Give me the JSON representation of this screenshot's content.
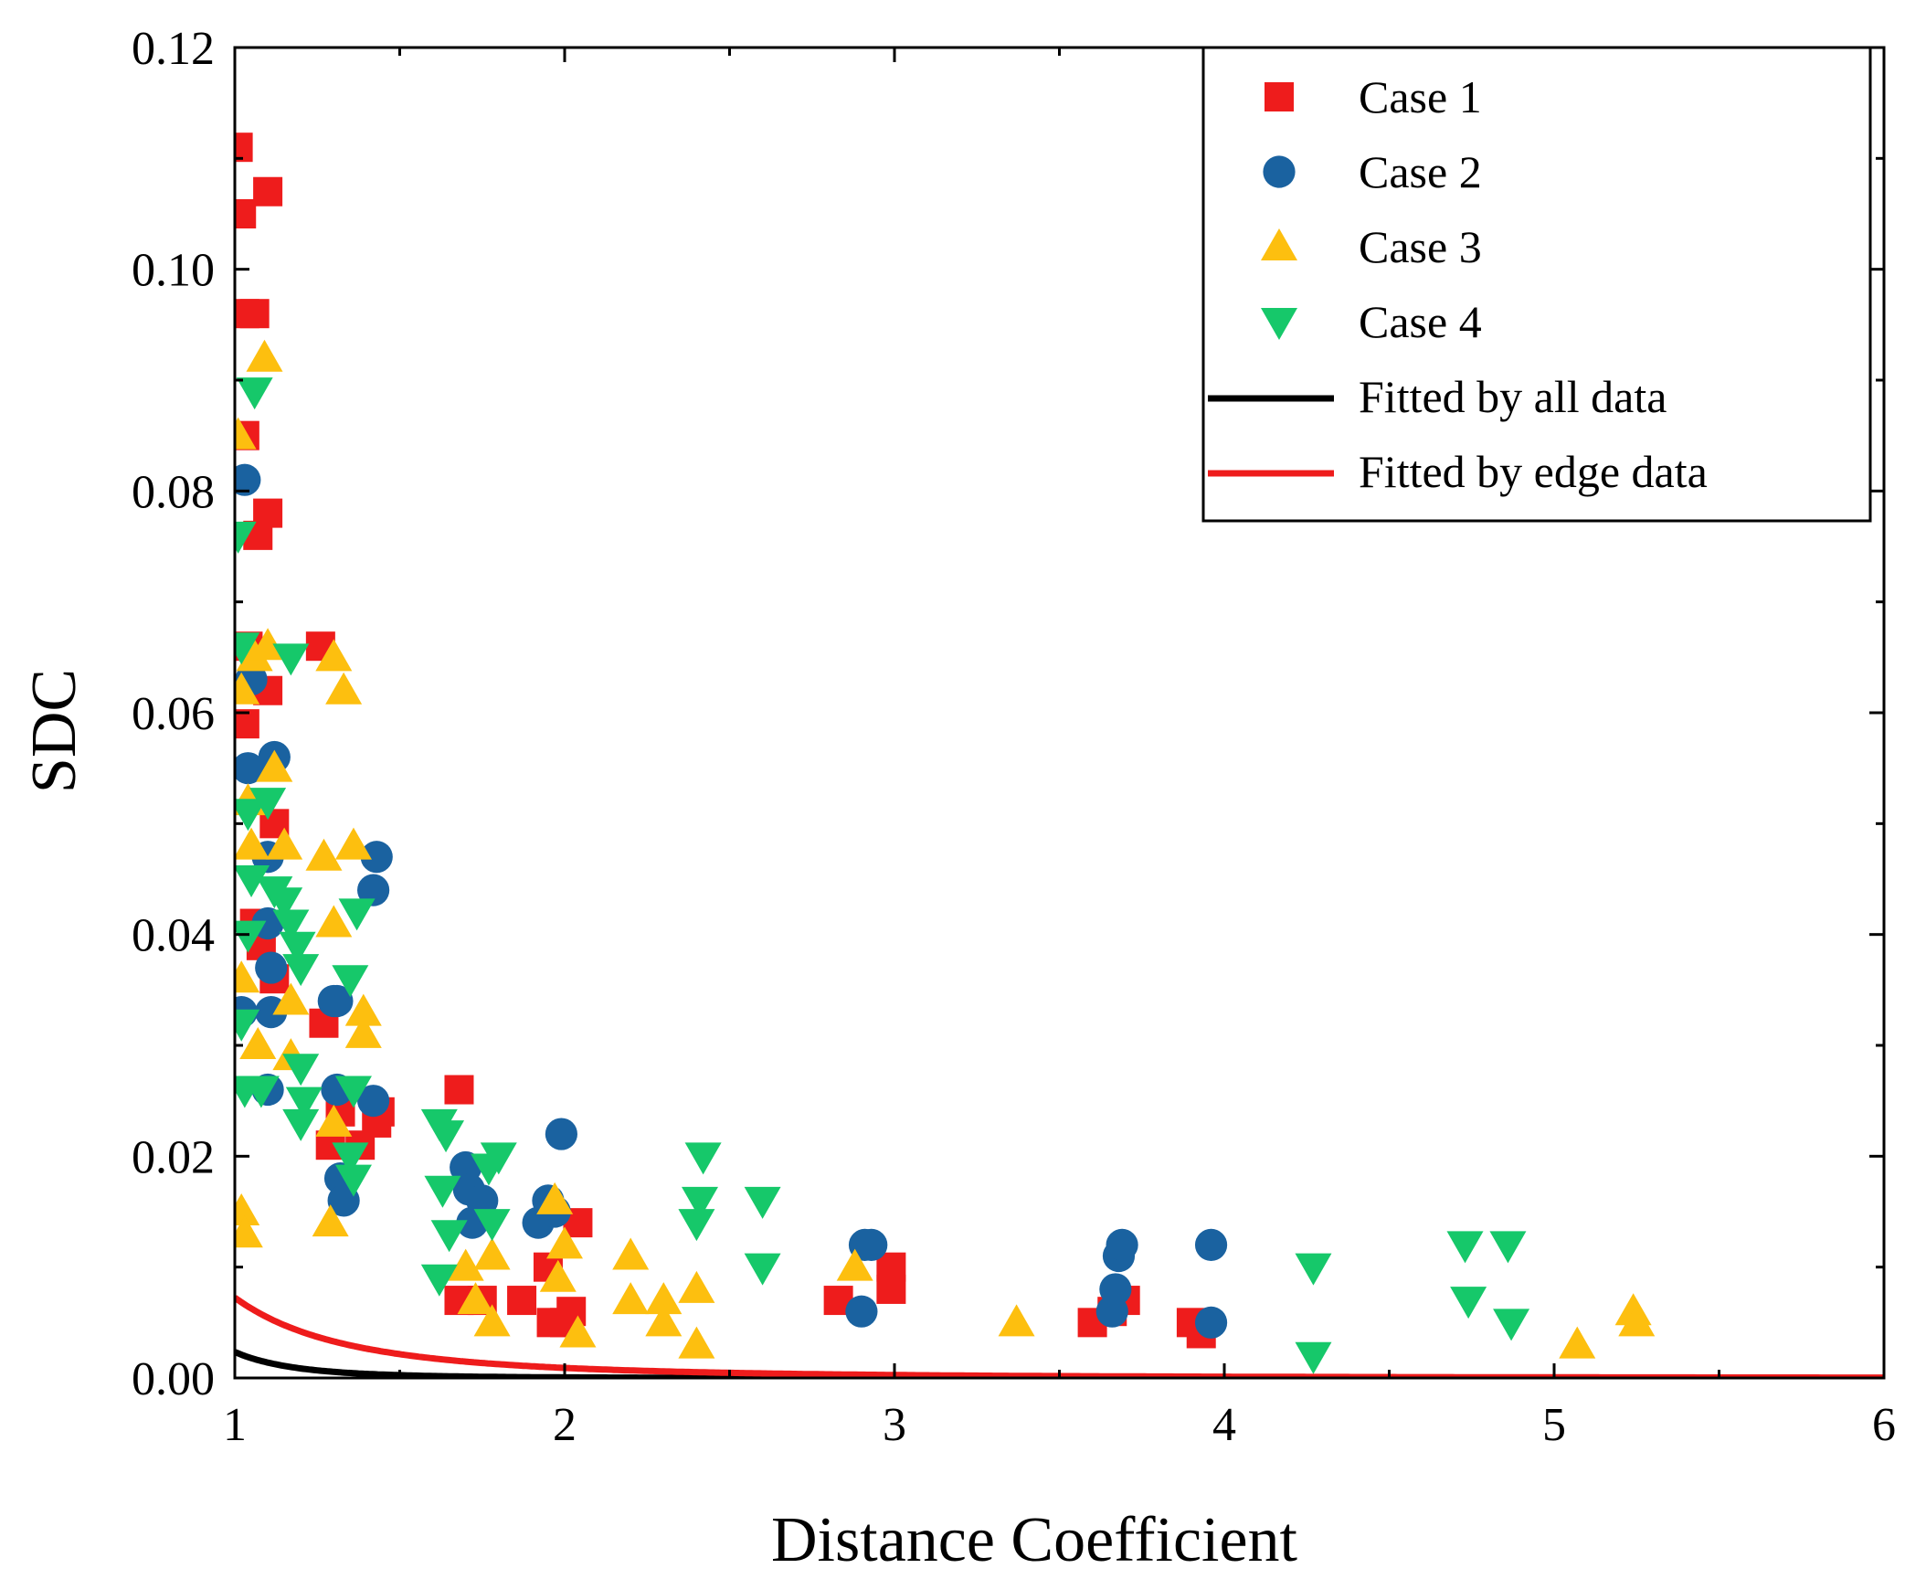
{
  "chart_data": {
    "type": "scatter",
    "title": "",
    "xlabel": "Distance Coefficient",
    "ylabel": "SDC",
    "xlim": [
      1,
      6
    ],
    "ylim": [
      0,
      0.12
    ],
    "x_ticks": [
      1,
      2,
      3,
      4,
      5,
      6
    ],
    "x_tick_labels": [
      "1",
      "2",
      "3",
      "4",
      "5",
      "6"
    ],
    "y_ticks": [
      0,
      0.02,
      0.04,
      0.06,
      0.08,
      0.1,
      0.12
    ],
    "y_tick_labels": [
      "0.00",
      "0.02",
      "0.04",
      "0.06",
      "0.08",
      "0.10",
      "0.12"
    ],
    "grid": false,
    "legend_position": "top-right",
    "series": [
      {
        "name": "Case 1",
        "marker": "square",
        "color": "#ee1c1c",
        "points": [
          [
            1.01,
            0.111
          ],
          [
            1.02,
            0.105
          ],
          [
            1.03,
            0.096
          ],
          [
            1.06,
            0.096
          ],
          [
            1.1,
            0.107
          ],
          [
            1.03,
            0.085
          ],
          [
            1.07,
            0.076
          ],
          [
            1.1,
            0.078
          ],
          [
            1.04,
            0.066
          ],
          [
            1.03,
            0.059
          ],
          [
            1.1,
            0.062
          ],
          [
            1.12,
            0.05
          ],
          [
            1.06,
            0.041
          ],
          [
            1.12,
            0.036
          ],
          [
            1.08,
            0.039
          ],
          [
            1.26,
            0.066
          ],
          [
            1.27,
            0.032
          ],
          [
            1.29,
            0.021
          ],
          [
            1.32,
            0.024
          ],
          [
            1.38,
            0.021
          ],
          [
            1.43,
            0.023
          ],
          [
            1.44,
            0.024
          ],
          [
            1.68,
            0.026
          ],
          [
            1.68,
            0.007
          ],
          [
            1.75,
            0.007
          ],
          [
            1.87,
            0.007
          ],
          [
            1.95,
            0.01
          ],
          [
            1.96,
            0.005
          ],
          [
            2.0,
            0.005
          ],
          [
            2.02,
            0.006
          ],
          [
            2.04,
            0.014
          ],
          [
            2.83,
            0.007
          ],
          [
            2.99,
            0.01
          ],
          [
            2.99,
            0.008
          ],
          [
            3.6,
            0.005
          ],
          [
            3.66,
            0.006
          ],
          [
            3.7,
            0.007
          ],
          [
            3.9,
            0.005
          ],
          [
            3.93,
            0.004
          ]
        ]
      },
      {
        "name": "Case 2",
        "marker": "circle",
        "color": "#1a62a0",
        "points": [
          [
            1.03,
            0.081
          ],
          [
            1.04,
            0.055
          ],
          [
            1.05,
            0.063
          ],
          [
            1.1,
            0.047
          ],
          [
            1.12,
            0.056
          ],
          [
            1.1,
            0.041
          ],
          [
            1.11,
            0.037
          ],
          [
            1.11,
            0.033
          ],
          [
            1.1,
            0.026
          ],
          [
            1.02,
            0.033
          ],
          [
            1.3,
            0.034
          ],
          [
            1.31,
            0.034
          ],
          [
            1.31,
            0.026
          ],
          [
            1.32,
            0.018
          ],
          [
            1.33,
            0.016
          ],
          [
            1.42,
            0.025
          ],
          [
            1.42,
            0.044
          ],
          [
            1.43,
            0.047
          ],
          [
            1.7,
            0.019
          ],
          [
            1.71,
            0.017
          ],
          [
            1.72,
            0.014
          ],
          [
            1.75,
            0.016
          ],
          [
            1.92,
            0.014
          ],
          [
            1.95,
            0.016
          ],
          [
            1.97,
            0.015
          ],
          [
            1.99,
            0.022
          ],
          [
            2.9,
            0.006
          ],
          [
            2.91,
            0.012
          ],
          [
            2.93,
            0.012
          ],
          [
            3.66,
            0.006
          ],
          [
            3.67,
            0.008
          ],
          [
            3.68,
            0.011
          ],
          [
            3.69,
            0.012
          ],
          [
            3.96,
            0.012
          ],
          [
            3.96,
            0.005
          ]
        ]
      },
      {
        "name": "Case 3",
        "marker": "triangle-up",
        "color": "#fdbf0f",
        "points": [
          [
            1.01,
            0.085
          ],
          [
            1.02,
            0.062
          ],
          [
            1.04,
            0.052
          ],
          [
            1.05,
            0.048
          ],
          [
            1.06,
            0.065
          ],
          [
            1.07,
            0.03
          ],
          [
            1.02,
            0.036
          ],
          [
            1.02,
            0.015
          ],
          [
            1.03,
            0.013
          ],
          [
            1.09,
            0.092
          ],
          [
            1.1,
            0.066
          ],
          [
            1.12,
            0.055
          ],
          [
            1.15,
            0.048
          ],
          [
            1.17,
            0.034
          ],
          [
            1.17,
            0.029
          ],
          [
            1.27,
            0.047
          ],
          [
            1.3,
            0.041
          ],
          [
            1.3,
            0.065
          ],
          [
            1.33,
            0.062
          ],
          [
            1.36,
            0.048
          ],
          [
            1.39,
            0.031
          ],
          [
            1.39,
            0.033
          ],
          [
            1.3,
            0.023
          ],
          [
            1.29,
            0.014
          ],
          [
            1.7,
            0.01
          ],
          [
            1.73,
            0.007
          ],
          [
            1.78,
            0.005
          ],
          [
            1.78,
            0.011
          ],
          [
            1.97,
            0.016
          ],
          [
            1.98,
            0.009
          ],
          [
            2.0,
            0.012
          ],
          [
            2.04,
            0.004
          ],
          [
            2.2,
            0.007
          ],
          [
            2.2,
            0.011
          ],
          [
            2.3,
            0.007
          ],
          [
            2.3,
            0.005
          ],
          [
            2.4,
            0.008
          ],
          [
            2.4,
            0.003
          ],
          [
            2.88,
            0.01
          ],
          [
            3.37,
            0.005
          ],
          [
            5.07,
            0.003
          ],
          [
            5.24,
            0.006
          ],
          [
            5.25,
            0.005
          ]
        ]
      },
      {
        "name": "Case 4",
        "marker": "triangle-down",
        "color": "#16c86a",
        "points": [
          [
            1.01,
            0.076
          ],
          [
            1.02,
            0.066
          ],
          [
            1.06,
            0.089
          ],
          [
            1.04,
            0.051
          ],
          [
            1.05,
            0.045
          ],
          [
            1.04,
            0.04
          ],
          [
            1.02,
            0.032
          ],
          [
            1.03,
            0.026
          ],
          [
            1.08,
            0.026
          ],
          [
            1.1,
            0.052
          ],
          [
            1.12,
            0.044
          ],
          [
            1.15,
            0.043
          ],
          [
            1.17,
            0.041
          ],
          [
            1.19,
            0.039
          ],
          [
            1.2,
            0.037
          ],
          [
            1.2,
            0.028
          ],
          [
            1.21,
            0.025
          ],
          [
            1.2,
            0.023
          ],
          [
            1.17,
            0.065
          ],
          [
            1.35,
            0.036
          ],
          [
            1.36,
            0.026
          ],
          [
            1.35,
            0.02
          ],
          [
            1.36,
            0.018
          ],
          [
            1.37,
            0.042
          ],
          [
            1.62,
            0.023
          ],
          [
            1.64,
            0.022
          ],
          [
            1.63,
            0.017
          ],
          [
            1.65,
            0.013
          ],
          [
            1.62,
            0.009
          ],
          [
            1.77,
            0.019
          ],
          [
            1.78,
            0.014
          ],
          [
            1.8,
            0.02
          ],
          [
            2.42,
            0.02
          ],
          [
            2.41,
            0.016
          ],
          [
            2.4,
            0.014
          ],
          [
            2.6,
            0.016
          ],
          [
            2.6,
            0.01
          ],
          [
            4.27,
            0.01
          ],
          [
            4.27,
            0.002
          ],
          [
            4.73,
            0.012
          ],
          [
            4.74,
            0.007
          ],
          [
            4.86,
            0.012
          ],
          [
            4.87,
            0.005
          ]
        ]
      },
      {
        "name": "Fitted by all data",
        "type": "line",
        "color": "#000000",
        "curve": "power",
        "a": 0.002344,
        "b": -5.5
      },
      {
        "name": "Fitted by edge data",
        "type": "line",
        "color": "#ee1c1c",
        "curve": "power",
        "a": 0.007247,
        "b": -3.0
      }
    ]
  }
}
